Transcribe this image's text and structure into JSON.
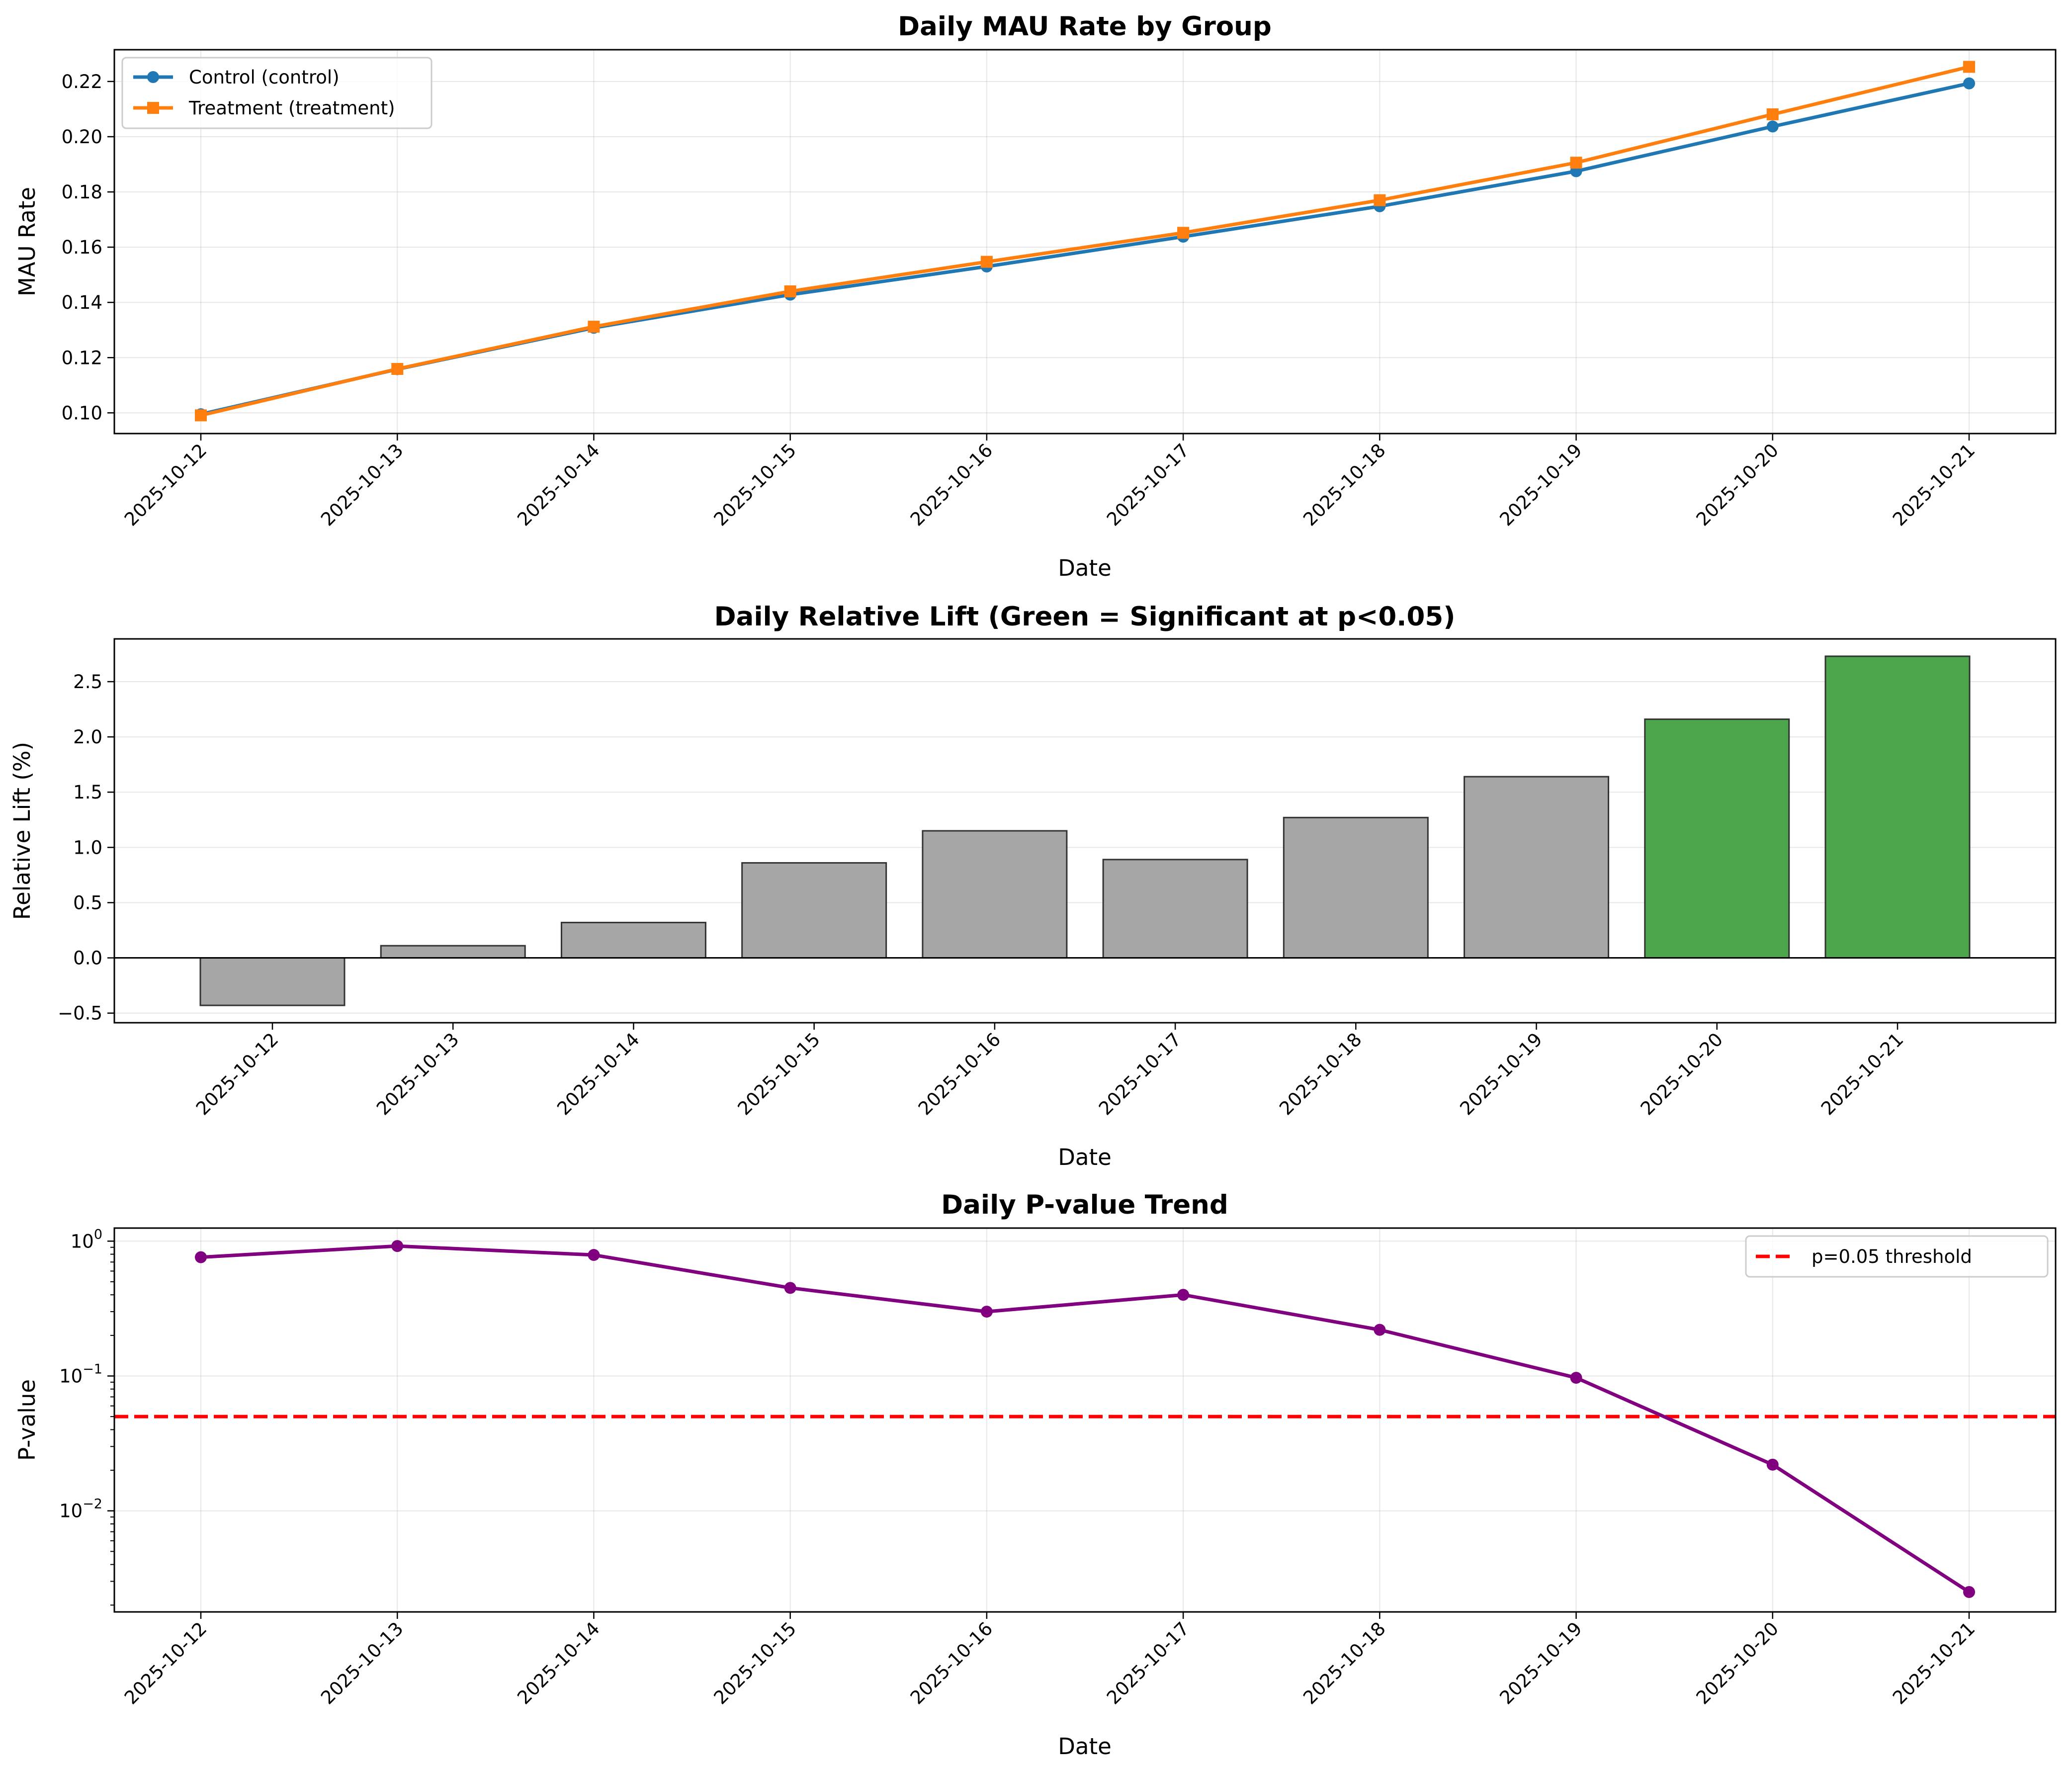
{
  "chart_data": [
    {
      "type": "line",
      "title": "Daily MAU Rate by Group",
      "xlabel": "Date",
      "ylabel": "MAU Rate",
      "x": [
        "2025-10-12",
        "2025-10-13",
        "2025-10-14",
        "2025-10-15",
        "2025-10-16",
        "2025-10-17",
        "2025-10-18",
        "2025-10-19",
        "2025-10-20",
        "2025-10-21"
      ],
      "ylim": [
        0.0925,
        0.2315
      ],
      "yticks": [
        0.1,
        0.12,
        0.14,
        0.16,
        0.18,
        0.2,
        0.22
      ],
      "ytick_labels": [
        "0.10",
        "0.12",
        "0.14",
        "0.16",
        "0.18",
        "0.20",
        "0.22"
      ],
      "grid": true,
      "legend": "upper-left",
      "series": [
        {
          "name": "Control (control)",
          "color": "#1f77b4",
          "marker": "circle",
          "values": [
            0.0995,
            0.1158,
            0.1308,
            0.1428,
            0.153,
            0.1638,
            0.1748,
            0.1875,
            0.2037,
            0.2193
          ]
        },
        {
          "name": "Treatment (treatment)",
          "color": "#ff7f0e",
          "marker": "square",
          "values": [
            0.0991,
            0.1159,
            0.1312,
            0.144,
            0.1547,
            0.1652,
            0.177,
            0.1906,
            0.2081,
            0.2253
          ]
        }
      ]
    },
    {
      "type": "bar",
      "title": "Daily Relative Lift (Green = Significant at p<0.05)",
      "xlabel": "Date",
      "ylabel": "Relative Lift (%)",
      "categories": [
        "2025-10-12",
        "2025-10-13",
        "2025-10-14",
        "2025-10-15",
        "2025-10-16",
        "2025-10-17",
        "2025-10-18",
        "2025-10-19",
        "2025-10-20",
        "2025-10-21"
      ],
      "values": [
        -0.43,
        0.11,
        0.32,
        0.86,
        1.15,
        0.89,
        1.27,
        1.64,
        2.16,
        2.73
      ],
      "significant": [
        false,
        false,
        false,
        false,
        false,
        false,
        false,
        false,
        true,
        true
      ],
      "colors": {
        "significant": "#4ca64c",
        "not_significant": "#a6a6a6",
        "edge": "#333333"
      },
      "ylim": [
        -0.587,
        2.887
      ],
      "yticks": [
        -0.5,
        0.0,
        0.5,
        1.0,
        1.5,
        2.0,
        2.5
      ],
      "ytick_labels": [
        "−0.5",
        "0.0",
        "0.5",
        "1.0",
        "1.5",
        "2.0",
        "2.5"
      ],
      "grid": true
    },
    {
      "type": "line",
      "title": "Daily P-value Trend",
      "xlabel": "Date",
      "ylabel": "P-value",
      "yscale": "log",
      "x": [
        "2025-10-12",
        "2025-10-13",
        "2025-10-14",
        "2025-10-15",
        "2025-10-16",
        "2025-10-17",
        "2025-10-18",
        "2025-10-19",
        "2025-10-20",
        "2025-10-21"
      ],
      "ylim": [
        0.00178,
        1.25
      ],
      "yticks": [
        0.01,
        0.1,
        1
      ],
      "ytick_labels": [
        {
          "base": "10",
          "exp": "−2"
        },
        {
          "base": "10",
          "exp": "−1"
        },
        {
          "base": "10",
          "exp": "0"
        }
      ],
      "grid": true,
      "legend": "upper-right",
      "series": [
        {
          "name": "",
          "color": "#800080",
          "marker": "circle",
          "values": [
            0.76,
            0.92,
            0.79,
            0.45,
            0.3,
            0.4,
            0.22,
            0.097,
            0.022,
            0.0025
          ]
        }
      ],
      "threshold": {
        "name": "p=0.05 threshold",
        "value": 0.05,
        "color": "#ff0000"
      }
    }
  ]
}
